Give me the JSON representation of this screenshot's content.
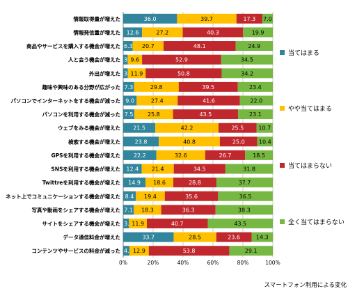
{
  "chart_data": {
    "type": "bar",
    "orientation": "horizontal",
    "stacked": true,
    "title": "",
    "xlabel": "",
    "ylabel": "",
    "xlim": [
      0,
      100
    ],
    "x_ticks": [
      "0%",
      "20%",
      "40%",
      "60%",
      "80%",
      "100%"
    ],
    "grid": true,
    "legend_placement": "right",
    "categories": [
      "情報取得量が増えた",
      "情報発信量が増えた",
      "商品やサービスを購入する機会が増えた",
      "人と会う機会が増えた",
      "外出が増えた",
      "趣味や興味のある分野が広がった",
      "パソコンでインターネットをする機会が減った",
      "パソコンを利用する機会が減った",
      "ウェブをみる機会が増えた",
      "検索する機会が増えた",
      "GPSを利用する機会が増えた",
      "SNSを利用する機会が増えた",
      "Twittreを利用する機会が増えた",
      "ネット上でコミュニケーションする機会が増えた",
      "写真や動画をシェアする機会が増えた",
      "サイトをシェアする機会が増えた",
      "データ通信料金が増えた",
      "コンテンツやサービスの料金が減った"
    ],
    "series": [
      {
        "name": "当てはまる",
        "color": "#31859c",
        "values": [
          36.0,
          12.6,
          6.3,
          3.0,
          3.1,
          7.3,
          9.0,
          7.5,
          21.5,
          23.8,
          22.2,
          12.4,
          14.9,
          8.4,
          7.1,
          3.9,
          33.7,
          4.2
        ],
        "labels": [
          "36.0",
          "12.6",
          "6.3",
          "3.0",
          "3.1",
          "7.3",
          "9.0",
          "7.5",
          "21.5",
          "23.8",
          "22.2",
          "12.4",
          "14.9",
          "8.4",
          "7.1",
          "3.9",
          "33.7",
          "4.2"
        ]
      },
      {
        "name": "やや当てはまる",
        "color": "#ffc000",
        "values": [
          39.7,
          27.2,
          20.7,
          9.6,
          11.9,
          29.8,
          27.4,
          25.8,
          42.2,
          40.8,
          32.6,
          21.4,
          18.6,
          19.4,
          18.3,
          11.9,
          28.5,
          12.9
        ],
        "labels": [
          "39.7",
          "27.2",
          "20.7",
          "9.6",
          "11.9",
          "29.8",
          "27.4",
          "25.8",
          "42.2",
          "40.8",
          "32.6",
          "21.4",
          "18.6",
          "19.4",
          "18.3",
          "11.9",
          "28.5",
          "12.9"
        ]
      },
      {
        "name": "当てはまらない",
        "color": "#c0282d",
        "values": [
          17.3,
          40.3,
          48.1,
          52.9,
          50.8,
          39.5,
          41.6,
          43.5,
          25.5,
          25.0,
          26.7,
          34.5,
          28.8,
          35.6,
          36.3,
          40.7,
          23.6,
          53.8
        ],
        "labels": [
          "17.3",
          "40.3",
          "48.1",
          "52.9",
          "50.8",
          "39.5",
          "41.6",
          "43.5",
          "25.5",
          "25.0",
          "26.7",
          "34.5",
          "28.8",
          "35.6",
          "36.3",
          "40.7",
          "23.6",
          "53.8"
        ]
      },
      {
        "name": "全く当てはまらない",
        "color": "#77b843",
        "values": [
          7.0,
          19.9,
          24.9,
          34.5,
          34.2,
          23.4,
          22.0,
          23.1,
          10.7,
          10.4,
          18.5,
          31.8,
          37.7,
          36.5,
          38.3,
          43.5,
          14.3,
          29.1
        ],
        "labels": [
          "7.0",
          "19.9",
          "24.9",
          "34.5",
          "34.2",
          "23.4",
          "22.0",
          "23.1",
          "10.7",
          "10.4",
          "18.5",
          "31.8",
          "37.7",
          "36.5",
          "38.3",
          "43.5",
          "14.3",
          "29.1"
        ]
      }
    ],
    "footnote": "スマートフォン利用による変化"
  }
}
